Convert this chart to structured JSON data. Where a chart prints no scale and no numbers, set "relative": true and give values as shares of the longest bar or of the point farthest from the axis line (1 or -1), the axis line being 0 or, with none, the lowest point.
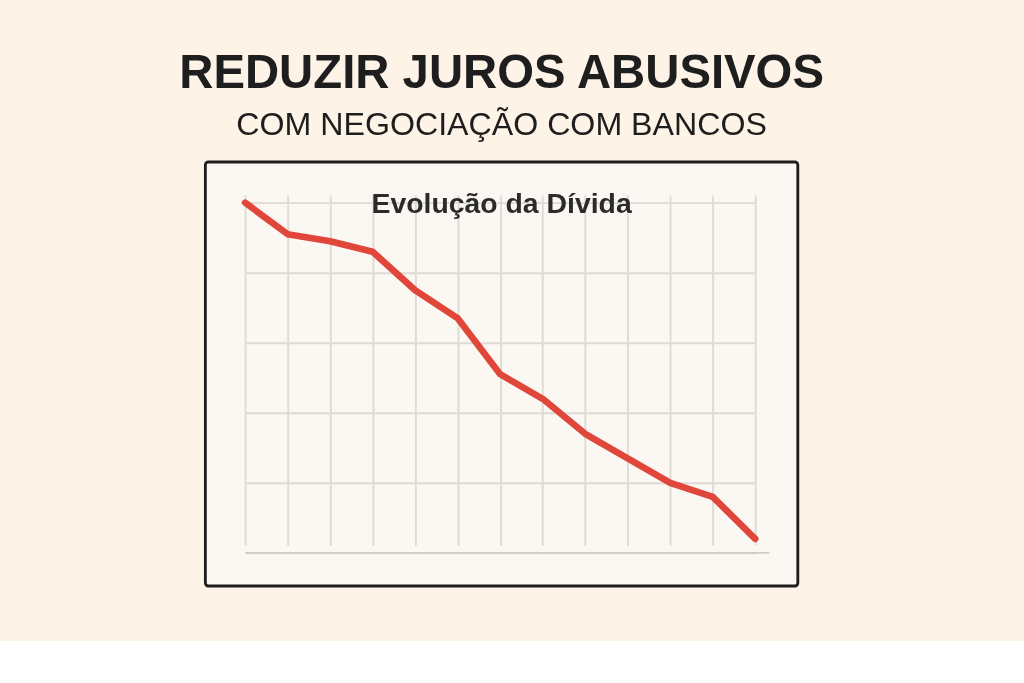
{
  "chart_data": {
    "type": "line",
    "title": "REDUZIR JUROS ABUSIVOS",
    "subtitle": "COM NEGOCIAÇÃO COM BANCOS",
    "annotations": [
      "Evolução da Dívida"
    ],
    "relative": true,
    "categories": [
      null,
      null,
      null,
      null,
      null,
      null,
      null,
      null,
      null,
      null,
      null,
      null,
      null
    ],
    "series": [
      {
        "color": "#e0463a",
        "values": [
          1,
          0.91,
          0.89,
          0.86,
          0.75,
          0.67,
          0.51,
          0.44,
          0.34,
          0.27,
          0.2,
          0.16,
          0.04
        ]
      }
    ],
    "grid": true,
    "marker": "none",
    "line_style": "solid"
  }
}
